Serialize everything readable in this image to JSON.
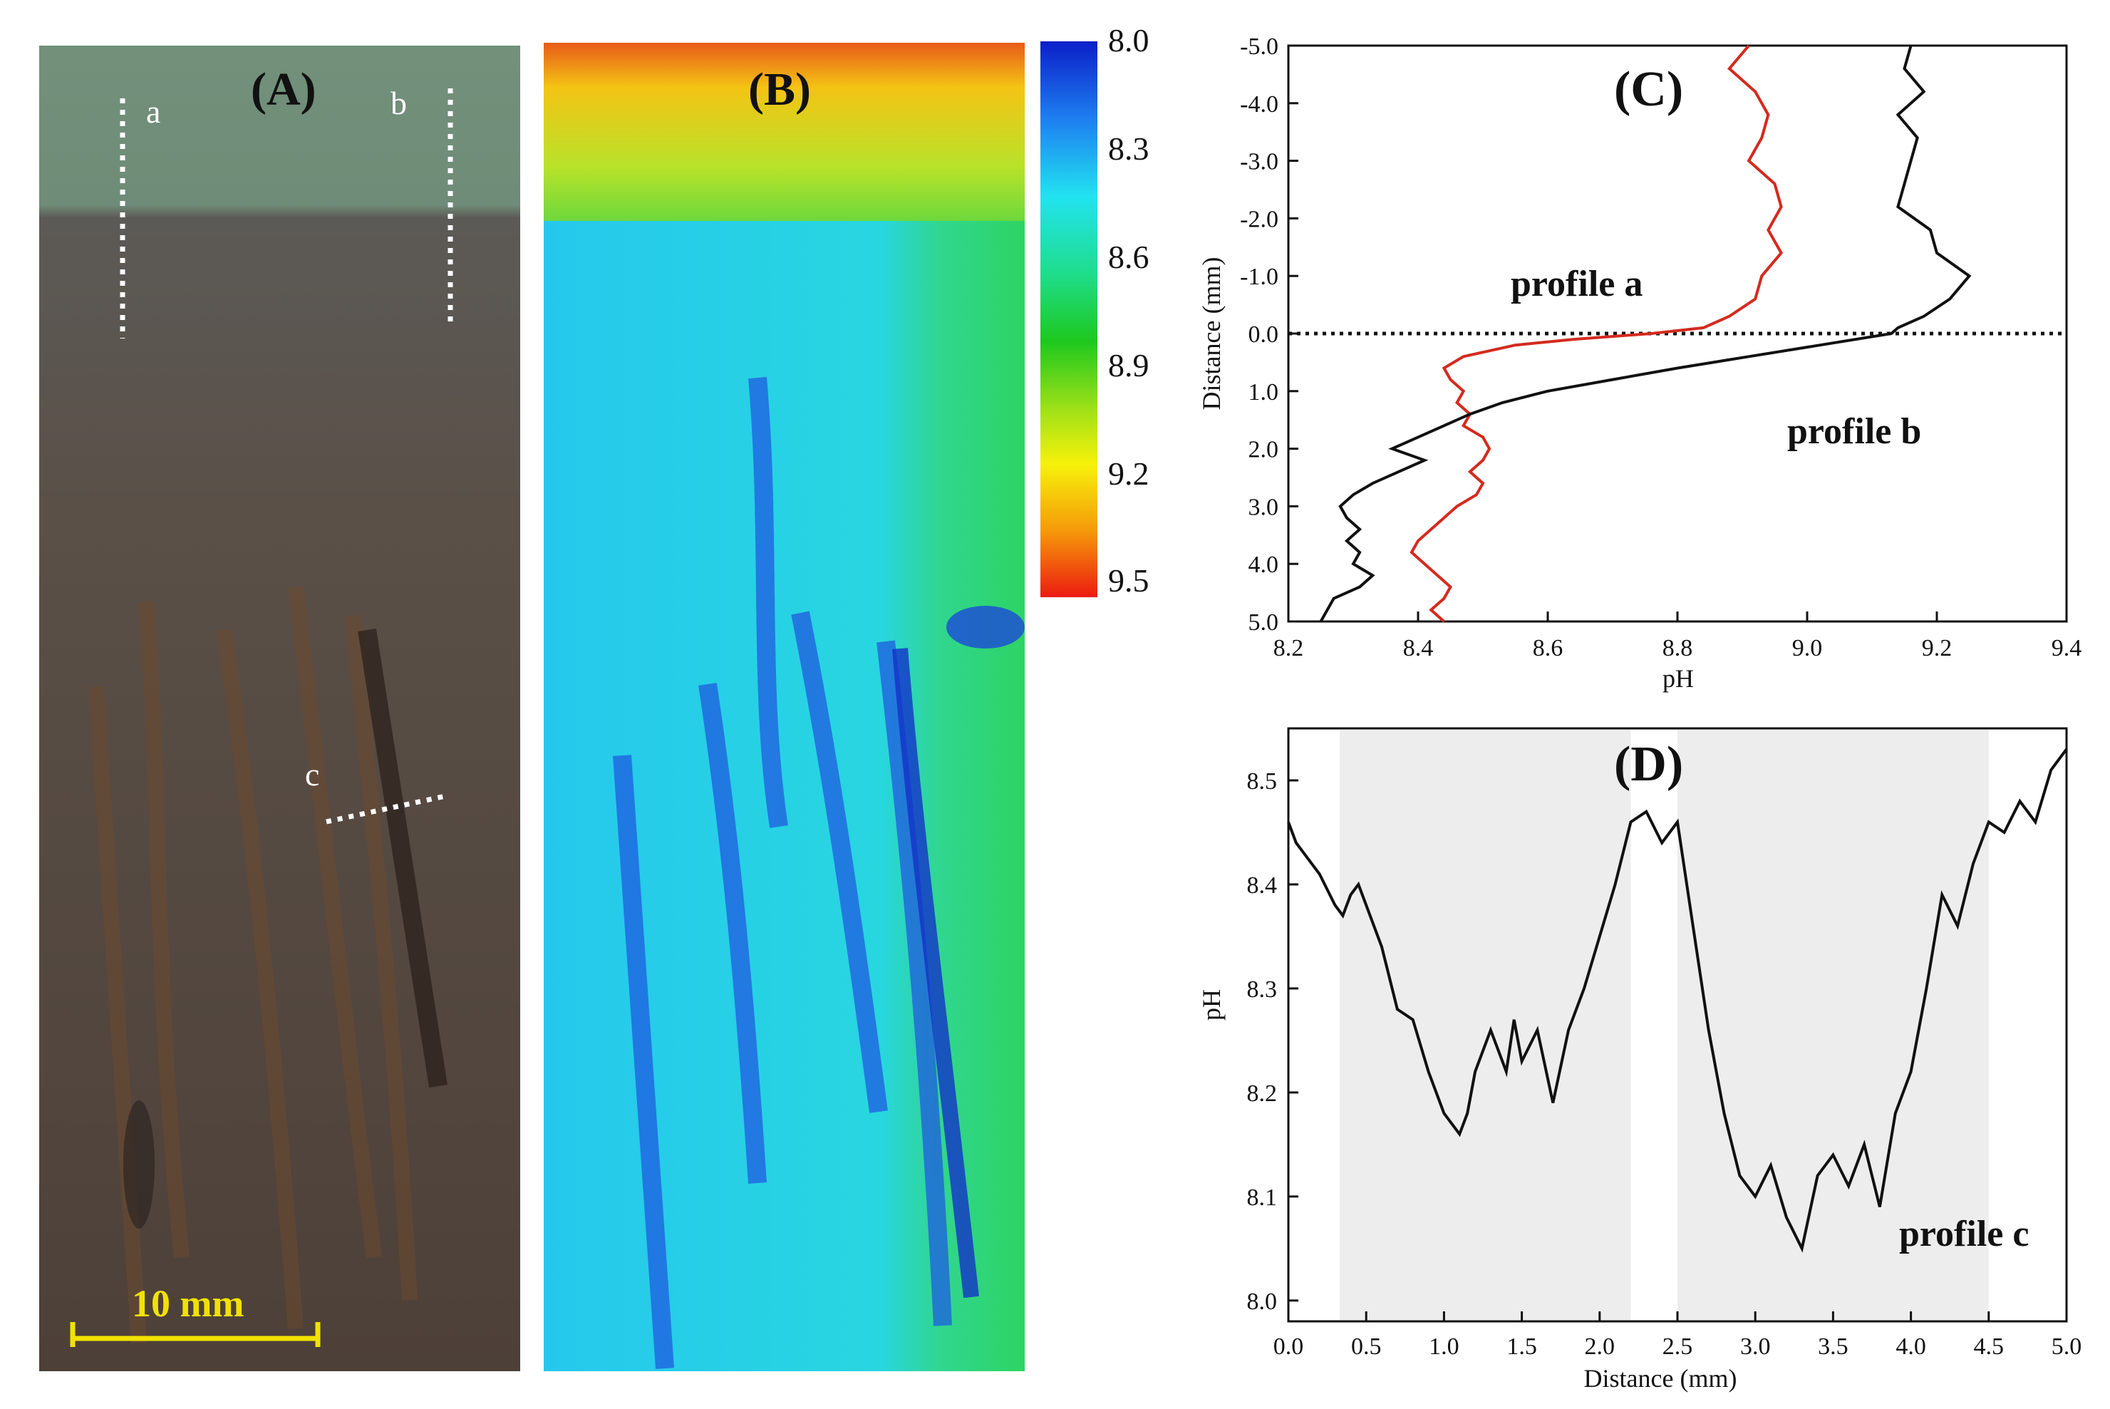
{
  "panelA": {
    "label": "(A)",
    "profile_markers": [
      "a",
      "b",
      "c"
    ],
    "scale_bar": "10 mm"
  },
  "panelB": {
    "label": "(B)",
    "colorbar_ticks": [
      "8.0",
      "8.3",
      "8.6",
      "8.9",
      "9.2",
      "9.5"
    ]
  },
  "chart_data": [
    {
      "panel": "(C)",
      "type": "line",
      "xlabel": "pH",
      "ylabel": "Distance (mm)",
      "xlim": [
        8.2,
        9.4
      ],
      "ylim": [
        -5.0,
        5.0
      ],
      "y_inverted": true,
      "xticks": [
        "8.2",
        "8.4",
        "8.6",
        "8.8",
        "9.0",
        "9.2",
        "9.4"
      ],
      "yticks": [
        "-5.0",
        "-4.0",
        "-3.0",
        "-2.0",
        "-1.0",
        "0.0",
        "1.0",
        "2.0",
        "3.0",
        "4.0",
        "5.0"
      ],
      "reference_line": {
        "y": 0.0,
        "style": "dotted"
      },
      "series": [
        {
          "name": "profile a",
          "color": "#d42a1e",
          "distance": [
            -5.0,
            -4.6,
            -4.2,
            -3.8,
            -3.4,
            -3.0,
            -2.6,
            -2.2,
            -1.8,
            -1.4,
            -1.0,
            -0.6,
            -0.3,
            -0.1,
            0.0,
            0.1,
            0.2,
            0.4,
            0.6,
            0.8,
            1.0,
            1.2,
            1.4,
            1.6,
            1.8,
            2.0,
            2.2,
            2.4,
            2.6,
            2.8,
            3.0,
            3.2,
            3.4,
            3.6,
            3.8,
            4.0,
            4.2,
            4.4,
            4.6,
            4.8,
            5.0
          ],
          "pH": [
            8.91,
            8.88,
            8.92,
            8.94,
            8.93,
            8.91,
            8.95,
            8.96,
            8.94,
            8.96,
            8.93,
            8.92,
            8.88,
            8.84,
            8.76,
            8.64,
            8.55,
            8.47,
            8.44,
            8.45,
            8.47,
            8.46,
            8.48,
            8.47,
            8.5,
            8.51,
            8.5,
            8.48,
            8.5,
            8.49,
            8.46,
            8.44,
            8.42,
            8.4,
            8.39,
            8.41,
            8.43,
            8.45,
            8.44,
            8.42,
            8.44
          ]
        },
        {
          "name": "profile b",
          "color": "#111111",
          "distance": [
            -5.0,
            -4.6,
            -4.2,
            -3.8,
            -3.4,
            -3.0,
            -2.6,
            -2.2,
            -1.8,
            -1.4,
            -1.0,
            -0.6,
            -0.3,
            -0.1,
            0.0,
            0.2,
            0.4,
            0.6,
            0.8,
            1.0,
            1.2,
            1.4,
            1.6,
            1.8,
            2.0,
            2.2,
            2.4,
            2.6,
            2.8,
            3.0,
            3.2,
            3.4,
            3.6,
            3.8,
            4.0,
            4.2,
            4.4,
            4.6,
            4.8,
            5.0
          ],
          "pH": [
            9.16,
            9.15,
            9.18,
            9.14,
            9.17,
            9.16,
            9.15,
            9.14,
            9.19,
            9.2,
            9.25,
            9.22,
            9.18,
            9.14,
            9.13,
            9.02,
            8.91,
            8.8,
            8.7,
            8.6,
            8.53,
            8.48,
            8.44,
            8.4,
            8.36,
            8.41,
            8.37,
            8.33,
            8.3,
            8.28,
            8.29,
            8.31,
            8.29,
            8.31,
            8.3,
            8.33,
            8.31,
            8.27,
            8.26,
            8.25
          ]
        }
      ]
    },
    {
      "panel": "(D)",
      "type": "line",
      "xlabel": "Distance (mm)",
      "ylabel": "pH",
      "xlim": [
        0.0,
        5.0
      ],
      "ylim": [
        7.98,
        8.55
      ],
      "xticks": [
        "0.0",
        "0.5",
        "1.0",
        "1.5",
        "2.0",
        "2.5",
        "3.0",
        "3.5",
        "4.0",
        "4.5",
        "5.0"
      ],
      "yticks": [
        "8.0",
        "8.1",
        "8.2",
        "8.3",
        "8.4",
        "8.5"
      ],
      "shaded_regions": [
        [
          0.33,
          2.2
        ],
        [
          2.5,
          4.5
        ]
      ],
      "series": [
        {
          "name": "profile c",
          "distance": [
            0.0,
            0.05,
            0.1,
            0.2,
            0.3,
            0.35,
            0.4,
            0.45,
            0.5,
            0.6,
            0.7,
            0.8,
            0.9,
            1.0,
            1.1,
            1.15,
            1.2,
            1.3,
            1.4,
            1.45,
            1.5,
            1.6,
            1.7,
            1.8,
            1.9,
            2.0,
            2.1,
            2.2,
            2.3,
            2.4,
            2.5,
            2.6,
            2.7,
            2.8,
            2.9,
            3.0,
            3.1,
            3.2,
            3.3,
            3.4,
            3.5,
            3.6,
            3.7,
            3.8,
            3.9,
            4.0,
            4.1,
            4.2,
            4.3,
            4.4,
            4.5,
            4.6,
            4.7,
            4.8,
            4.9,
            5.0
          ],
          "pH": [
            8.46,
            8.44,
            8.43,
            8.41,
            8.38,
            8.37,
            8.39,
            8.4,
            8.38,
            8.34,
            8.28,
            8.27,
            8.22,
            8.18,
            8.16,
            8.18,
            8.22,
            8.26,
            8.22,
            8.27,
            8.23,
            8.26,
            8.19,
            8.26,
            8.3,
            8.35,
            8.4,
            8.46,
            8.47,
            8.44,
            8.46,
            8.36,
            8.26,
            8.18,
            8.12,
            8.1,
            8.13,
            8.08,
            8.05,
            8.12,
            8.14,
            8.11,
            8.15,
            8.09,
            8.18,
            8.22,
            8.3,
            8.39,
            8.36,
            8.42,
            8.46,
            8.45,
            8.48,
            8.46,
            8.51,
            8.53
          ]
        }
      ]
    }
  ]
}
